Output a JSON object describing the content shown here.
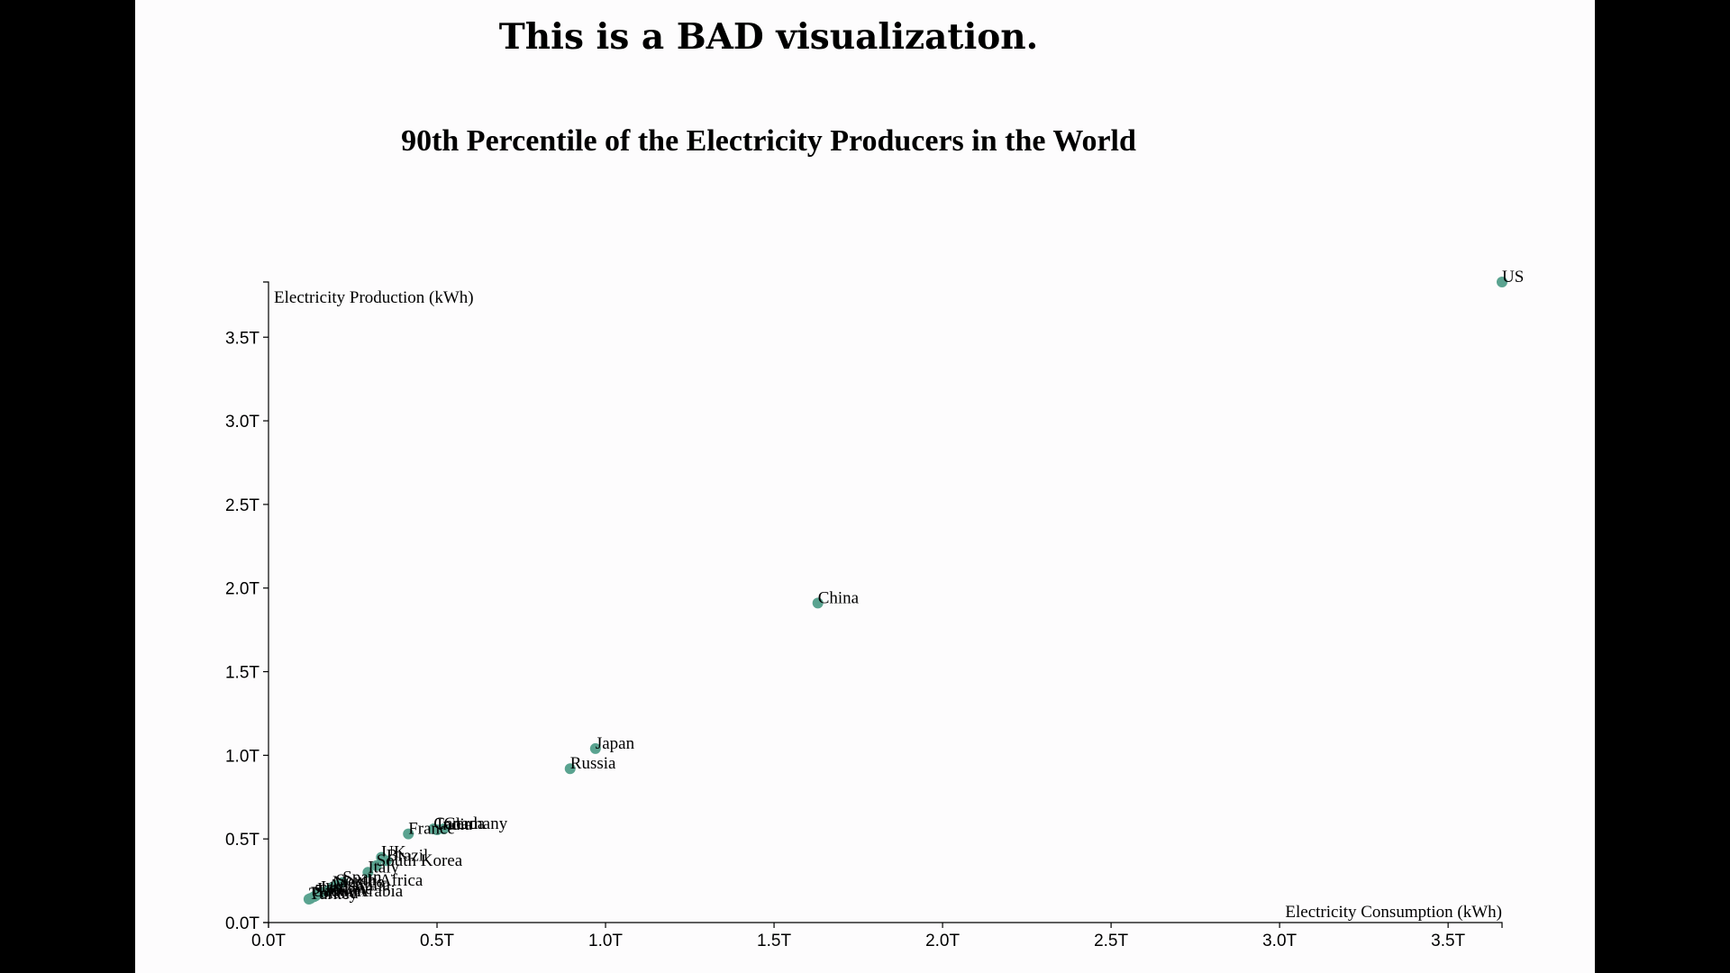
{
  "headline": "This is a BAD visualization.",
  "colors": {
    "point": "#5aa390",
    "background": "#fdfcfd",
    "outer": "#000000"
  },
  "chart_data": {
    "type": "scatter",
    "title": "90th Percentile of the Electricity Producers in the World",
    "xlabel": "Electricity Consumption (kWh)",
    "ylabel": "Electricity Production (kWh)",
    "xlim": [
      0,
      3.66
    ],
    "ylim": [
      0,
      3.83
    ],
    "x_ticks": [
      0,
      0.5,
      1.0,
      1.5,
      2.0,
      2.5,
      3.0,
      3.5
    ],
    "y_ticks": [
      0,
      0.5,
      1.0,
      1.5,
      2.0,
      2.5,
      3.0,
      3.5
    ],
    "tick_format": "T",
    "grid": false,
    "legend": "none",
    "points": [
      {
        "label": "US",
        "x": 3.66,
        "y": 3.83
      },
      {
        "label": "China",
        "x": 1.63,
        "y": 1.91
      },
      {
        "label": "Japan",
        "x": 0.97,
        "y": 1.04
      },
      {
        "label": "Russia",
        "x": 0.895,
        "y": 0.92
      },
      {
        "label": "Germany",
        "x": 0.52,
        "y": 0.56
      },
      {
        "label": "India",
        "x": 0.5,
        "y": 0.555
      },
      {
        "label": "Canada",
        "x": 0.49,
        "y": 0.56
      },
      {
        "label": "France",
        "x": 0.415,
        "y": 0.53
      },
      {
        "label": "UK",
        "x": 0.335,
        "y": 0.39
      },
      {
        "label": "Brazil",
        "x": 0.35,
        "y": 0.37
      },
      {
        "label": "South Korea",
        "x": 0.32,
        "y": 0.34
      },
      {
        "label": "Italy",
        "x": 0.295,
        "y": 0.3
      },
      {
        "label": "Spain",
        "x": 0.22,
        "y": 0.24
      },
      {
        "label": "South Africa",
        "x": 0.2,
        "y": 0.22
      },
      {
        "label": "Mexico",
        "x": 0.19,
        "y": 0.21
      },
      {
        "label": "Australia",
        "x": 0.175,
        "y": 0.19
      },
      {
        "label": "Iran",
        "x": 0.155,
        "y": 0.18
      },
      {
        "label": "Ukraine",
        "x": 0.145,
        "y": 0.17
      },
      {
        "label": "Taiwan",
        "x": 0.14,
        "y": 0.16
      },
      {
        "label": "Saudi Arabia",
        "x": 0.135,
        "y": 0.155
      },
      {
        "label": "Poland",
        "x": 0.125,
        "y": 0.145
      },
      {
        "label": "Turkey",
        "x": 0.12,
        "y": 0.14
      }
    ]
  }
}
